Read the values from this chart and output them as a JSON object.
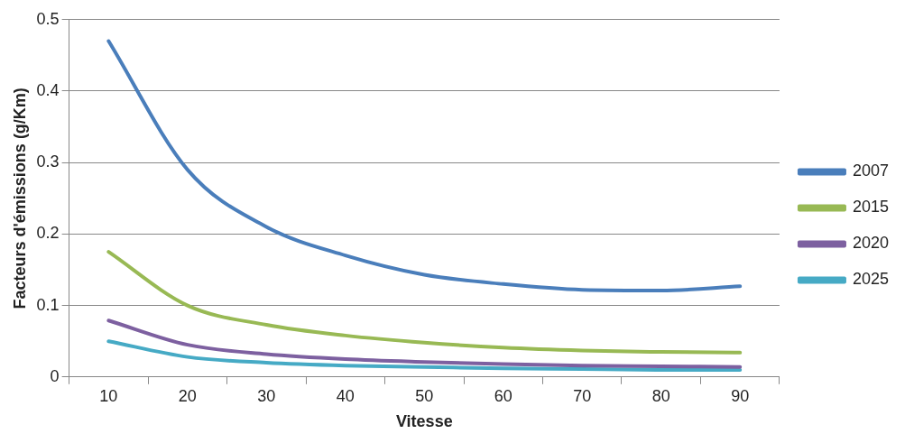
{
  "chart_data": {
    "type": "line",
    "xlabel": "Vitesse",
    "ylabel": "Facteurs d'émissions (g/Km)",
    "categories": [
      "10",
      "20",
      "30",
      "40",
      "50",
      "60",
      "70",
      "80",
      "90"
    ],
    "ylim": [
      0,
      0.5
    ],
    "yticks": [
      0,
      0.1,
      0.2,
      0.3,
      0.4,
      0.5
    ],
    "grid": "y",
    "legend": "right",
    "marker": "none",
    "line_style": "solid",
    "series": [
      {
        "name": "2007",
        "color": "#4a7ebb",
        "values": [
          0.47,
          0.29,
          0.21,
          0.17,
          0.143,
          0.13,
          0.122,
          0.121,
          0.127
        ]
      },
      {
        "name": "2015",
        "color": "#98b954",
        "values": [
          0.175,
          0.1,
          0.073,
          0.058,
          0.048,
          0.041,
          0.037,
          0.035,
          0.034
        ]
      },
      {
        "name": "2020",
        "color": "#7d60a0",
        "values": [
          0.079,
          0.045,
          0.032,
          0.025,
          0.021,
          0.018,
          0.016,
          0.015,
          0.014
        ]
      },
      {
        "name": "2025",
        "color": "#46aac5",
        "values": [
          0.05,
          0.028,
          0.02,
          0.016,
          0.014,
          0.012,
          0.011,
          0.01,
          0.01
        ]
      }
    ]
  }
}
